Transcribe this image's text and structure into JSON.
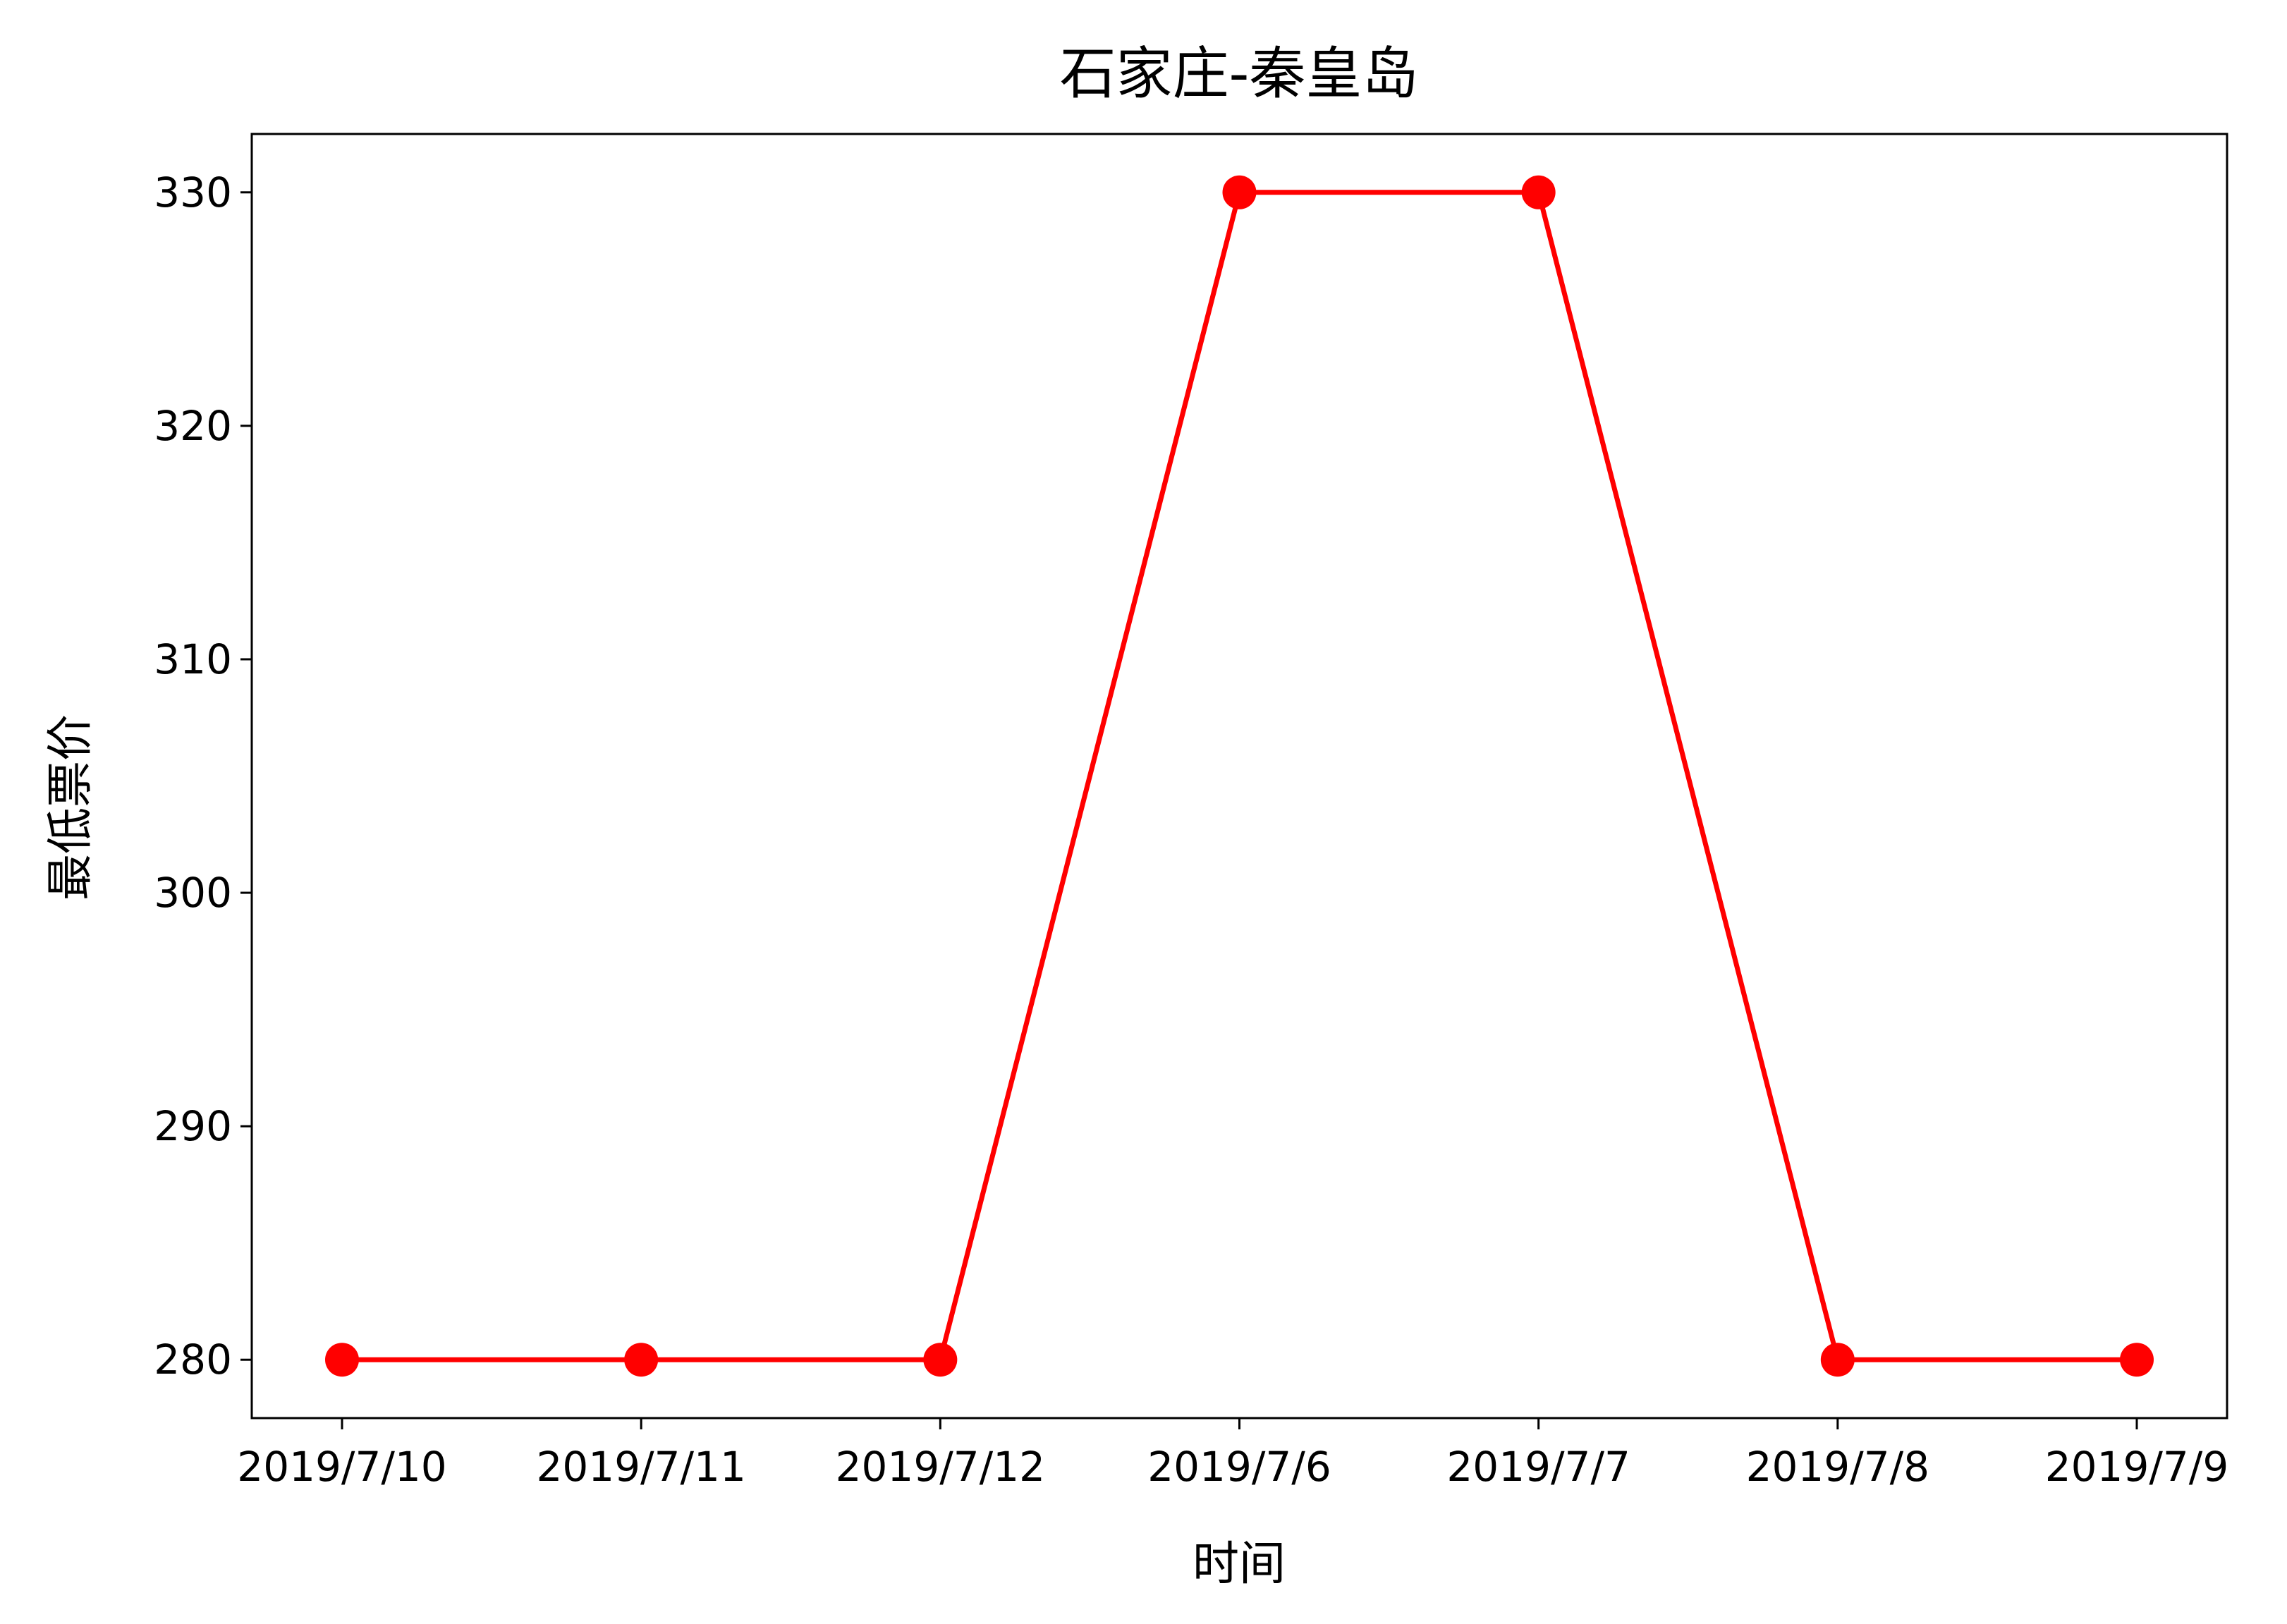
{
  "chart_data": {
    "type": "line",
    "title": "石家庄-秦皇岛",
    "xlabel": "时间",
    "ylabel": "最低票价",
    "categories": [
      "2019/7/10",
      "2019/7/11",
      "2019/7/12",
      "2019/7/6",
      "2019/7/7",
      "2019/7/8",
      "2019/7/9"
    ],
    "series": [
      {
        "values": [
          280,
          280,
          280,
          330,
          330,
          280,
          280
        ],
        "color": "#ff0000",
        "marker": "circle"
      }
    ],
    "ylim": [
      277.5,
      332.5
    ],
    "yticks": [
      280,
      290,
      300,
      310,
      320,
      330
    ],
    "grid": false,
    "legend": "none"
  }
}
